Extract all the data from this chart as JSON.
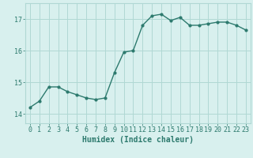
{
  "x": [
    0,
    1,
    2,
    3,
    4,
    5,
    6,
    7,
    8,
    9,
    10,
    11,
    12,
    13,
    14,
    15,
    16,
    17,
    18,
    19,
    20,
    21,
    22,
    23
  ],
  "y": [
    14.2,
    14.4,
    14.85,
    14.85,
    14.7,
    14.6,
    14.5,
    14.45,
    14.5,
    15.3,
    15.95,
    16.0,
    16.8,
    17.1,
    17.15,
    16.95,
    17.05,
    16.8,
    16.8,
    16.85,
    16.9,
    16.9,
    16.8,
    16.65
  ],
  "line_color": "#2d7a6e",
  "marker": "o",
  "marker_size": 2,
  "bg_color": "#d8f0ee",
  "grid_color": "#b0d8d4",
  "xlabel": "Humidex (Indice chaleur)",
  "yticks": [
    14,
    15,
    16,
    17
  ],
  "ylim": [
    13.7,
    17.5
  ],
  "xlim": [
    -0.5,
    23.5
  ],
  "xlabel_fontsize": 7,
  "tick_fontsize": 6,
  "line_width": 1.0
}
